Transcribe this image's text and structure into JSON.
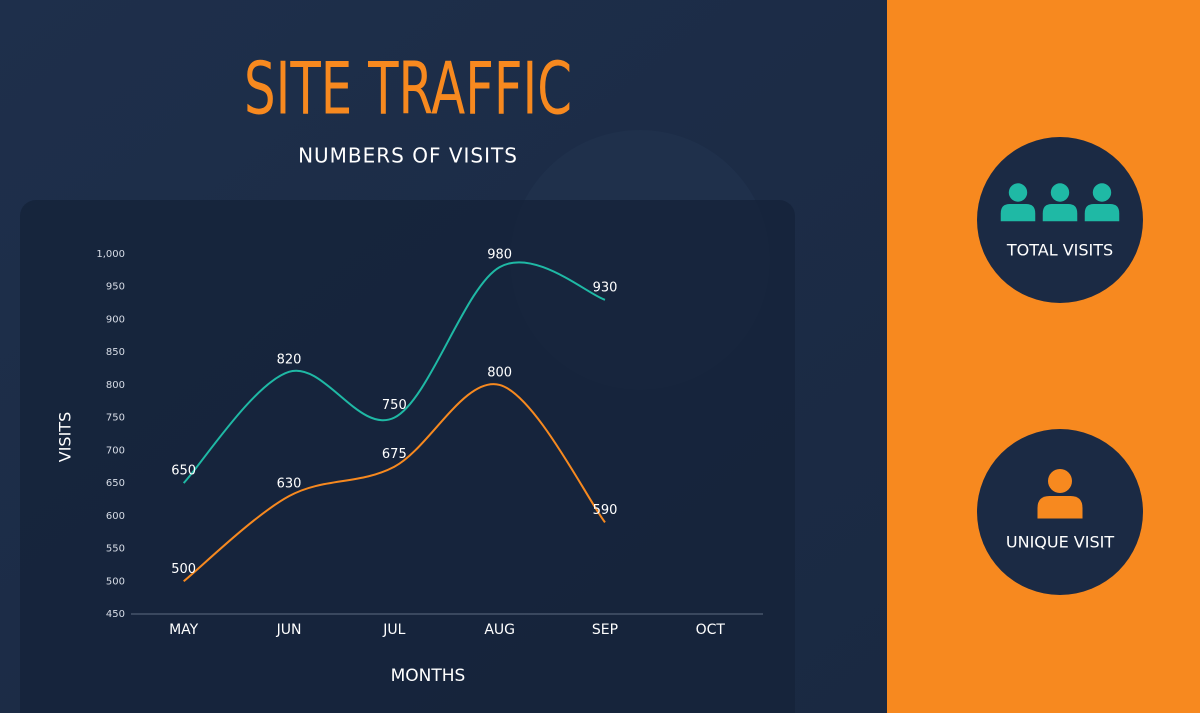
{
  "chart_data": {
    "type": "line",
    "title": "SITE TRAFFIC",
    "subtitle": "NUMBERS OF VISITS",
    "x_label": "MONTHS",
    "y_label": "VISITS",
    "categories": [
      "MAY",
      "JUN",
      "JUL",
      "AUG",
      "SEP",
      "OCT"
    ],
    "series": [
      {
        "name": "TOTAL VISITS",
        "color": "#1fb9a5",
        "values": [
          650,
          820,
          750,
          980,
          930,
          null
        ]
      },
      {
        "name": "UNIQUE VISIT",
        "color": "#f7891f",
        "values": [
          500,
          630,
          675,
          800,
          590,
          null
        ]
      }
    ],
    "ylim": [
      450,
      1000
    ],
    "yticks": [
      450,
      500,
      550,
      600,
      650,
      700,
      750,
      800,
      850,
      900,
      950,
      {
        "value": 1000,
        "label": "1,000"
      }
    ],
    "grid": false,
    "data_labels": true
  }
}
